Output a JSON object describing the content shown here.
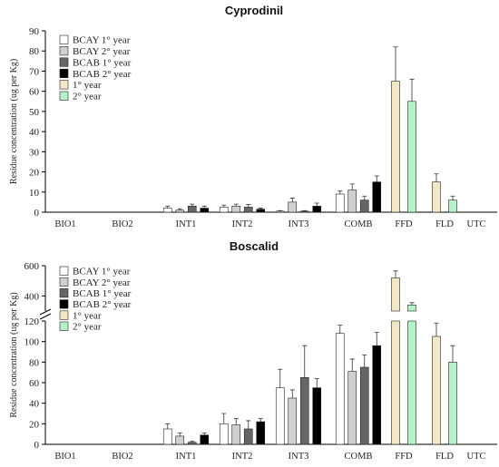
{
  "chart_data": [
    {
      "type": "bar",
      "title": "Cyprodinil",
      "ylabel": "Residue concentration (ug per Kg)",
      "ylim": [
        0,
        90
      ],
      "yticks": [
        0,
        10,
        20,
        30,
        40,
        50,
        60,
        70,
        80,
        90
      ],
      "categories": [
        "BIO1",
        "BIO2",
        "INT1",
        "INT2",
        "INT3",
        "COMB",
        "FFD",
        "FLD",
        "UTC"
      ],
      "series": [
        {
          "name": "BCAY 1° year",
          "color": "#ffffff",
          "values": [
            0,
            0,
            2,
            2.5,
            0.5,
            9,
            null,
            null,
            null
          ],
          "errors": [
            0,
            0,
            1,
            1,
            0.3,
            1.5,
            null,
            null,
            null
          ]
        },
        {
          "name": "BCAY 2° year",
          "color": "#d0d0d0",
          "values": [
            0,
            0,
            1,
            3,
            5,
            11,
            null,
            null,
            null
          ],
          "errors": [
            0,
            0,
            0.7,
            1,
            2,
            3,
            null,
            null,
            null
          ]
        },
        {
          "name": "BCAB 1° year",
          "color": "#666666",
          "values": [
            0,
            0,
            3,
            2.5,
            0.5,
            6,
            null,
            null,
            null
          ],
          "errors": [
            0,
            0,
            1,
            1.3,
            0.3,
            2,
            null,
            null,
            null
          ]
        },
        {
          "name": "BCAB 2° year",
          "color": "#000000",
          "values": [
            0,
            0,
            2,
            1.5,
            3,
            15,
            null,
            null,
            null
          ],
          "errors": [
            0,
            0,
            1,
            0.5,
            1.5,
            3,
            null,
            null,
            null
          ]
        },
        {
          "name": "1° year",
          "color": "#f3e8c6",
          "values": [
            null,
            null,
            null,
            null,
            null,
            null,
            65,
            15,
            null
          ],
          "errors": [
            null,
            null,
            null,
            null,
            null,
            null,
            17,
            4,
            null
          ]
        },
        {
          "name": "2° year",
          "color": "#b6f2c8",
          "values": [
            null,
            null,
            null,
            null,
            null,
            null,
            55,
            6,
            null
          ],
          "errors": [
            null,
            null,
            null,
            null,
            null,
            null,
            11,
            2,
            null
          ]
        }
      ]
    },
    {
      "type": "bar",
      "title": "Boscalid",
      "ylabel": "Residue concentration (ug per Kg)",
      "ylim_lower": [
        0,
        120
      ],
      "yticks_lower": [
        0,
        20,
        40,
        60,
        80,
        100,
        120
      ],
      "ylim_upper": [
        300,
        600
      ],
      "yticks_upper": [
        400,
        600
      ],
      "categories": [
        "BIO1",
        "BIO2",
        "INT1",
        "INT2",
        "INT3",
        "COMB",
        "FFD",
        "FLD",
        "UTC"
      ],
      "series": [
        {
          "name": "BCAY 1° year",
          "color": "#ffffff",
          "values": [
            0,
            0,
            15,
            20,
            55,
            108,
            null,
            null,
            null
          ],
          "errors": [
            0,
            0,
            5,
            10,
            18,
            8,
            null,
            null,
            null
          ]
        },
        {
          "name": "BCAY 2° year",
          "color": "#d0d0d0",
          "values": [
            0,
            0,
            8,
            19,
            45,
            71,
            null,
            null,
            null
          ],
          "errors": [
            0,
            0,
            3,
            6,
            8,
            12,
            null,
            null,
            null
          ]
        },
        {
          "name": "BCAB 1° year",
          "color": "#666666",
          "values": [
            0,
            0,
            2,
            15,
            65,
            75,
            null,
            null,
            null
          ],
          "errors": [
            0,
            0,
            1,
            8,
            31,
            12,
            null,
            null,
            null
          ]
        },
        {
          "name": "BCAB 2° year",
          "color": "#000000",
          "values": [
            0,
            0,
            9,
            22,
            55,
            96,
            null,
            null,
            null
          ],
          "errors": [
            0,
            0,
            2,
            3,
            9,
            13,
            null,
            null,
            null
          ]
        },
        {
          "name": "1° year",
          "color": "#f3e8c6",
          "values": [
            null,
            null,
            null,
            null,
            null,
            null,
            520,
            105,
            null
          ],
          "errors": [
            null,
            null,
            null,
            null,
            null,
            null,
            45,
            13,
            null
          ]
        },
        {
          "name": "2° year",
          "color": "#b6f2c8",
          "values": [
            null,
            null,
            null,
            null,
            null,
            null,
            340,
            80,
            null
          ],
          "errors": [
            null,
            null,
            null,
            null,
            null,
            null,
            15,
            16,
            null
          ]
        }
      ]
    }
  ]
}
